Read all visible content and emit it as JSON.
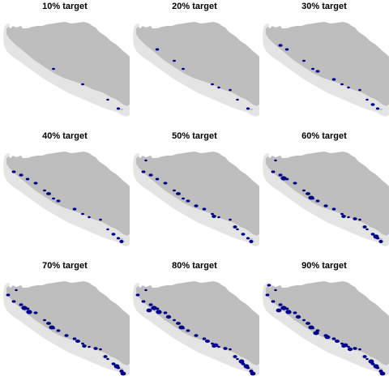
{
  "figure": {
    "panels": [
      {
        "title": "10% target",
        "target_percent": 10
      },
      {
        "title": "20% target",
        "target_percent": 20
      },
      {
        "title": "30% target",
        "target_percent": 30
      },
      {
        "title": "40% target",
        "target_percent": 40
      },
      {
        "title": "50% target",
        "target_percent": 50
      },
      {
        "title": "60% target",
        "target_percent": 60
      },
      {
        "title": "70% target",
        "target_percent": 70
      },
      {
        "title": "80% target",
        "target_percent": 80
      },
      {
        "title": "90% target",
        "target_percent": 90
      }
    ]
  },
  "colors": {
    "land": "#bebebe",
    "shelf": "#e4e4e4",
    "selected": "#00008b",
    "background": "#ffffff"
  },
  "legend": "none"
}
